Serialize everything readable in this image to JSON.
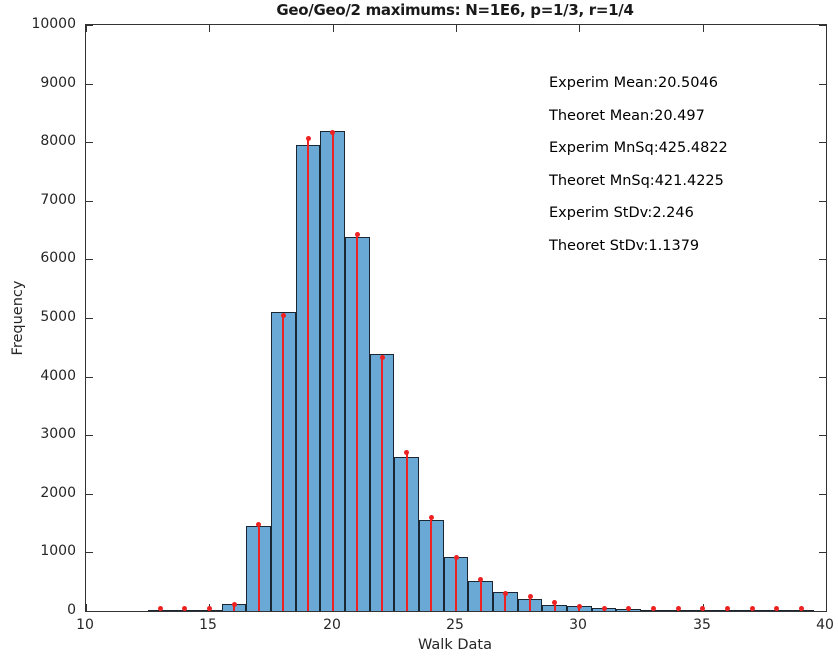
{
  "figure": {
    "title": "Geo/Geo/2 maximums: N=1E6, p=1/3, r=1/4",
    "xlabel": "Walk Data",
    "ylabel": "Frequency"
  },
  "colors": {
    "bar_fill": "#6aa8d6",
    "bar_edge": "#1a2632",
    "stem_red": "#ee2222",
    "axis": "#333333",
    "text": "#262626"
  },
  "chart_data": {
    "type": "bar",
    "subtype": "histogram-with-stem-overlay",
    "title": "Geo/Geo/2 maximums: N=1E6, p=1/3, r=1/4",
    "xlabel": "Walk Data",
    "ylabel": "Frequency",
    "xlim": [
      10,
      40
    ],
    "ylim": [
      0,
      10000
    ],
    "x_ticks": [
      10,
      15,
      20,
      25,
      30,
      35,
      40
    ],
    "y_ticks": [
      0,
      1000,
      2000,
      3000,
      4000,
      5000,
      6000,
      7000,
      8000,
      9000,
      10000
    ],
    "grid": false,
    "legend": "none",
    "bin_width": 1,
    "categories": [
      13,
      14,
      15,
      16,
      17,
      18,
      19,
      20,
      21,
      22,
      23,
      24,
      25,
      26,
      27,
      28,
      29,
      30,
      31,
      32,
      33,
      34,
      35,
      36,
      37,
      38,
      39
    ],
    "series": [
      {
        "name": "experimental-histogram",
        "type": "bar",
        "values": [
          3,
          4,
          15,
          125,
          1455,
          5100,
          7950,
          8190,
          6380,
          4390,
          2620,
          1560,
          930,
          515,
          330,
          210,
          105,
          85,
          45,
          28,
          14,
          6,
          3,
          2,
          1,
          1,
          1
        ]
      },
      {
        "name": "theoretical-stems",
        "type": "stem",
        "values": [
          2,
          3,
          12,
          118,
          1470,
          5040,
          8060,
          8165,
          6420,
          4330,
          2700,
          1590,
          915,
          530,
          300,
          250,
          140,
          75,
          25,
          12,
          6,
          4,
          2,
          2,
          1,
          1,
          1
        ]
      }
    ],
    "annotations": [
      "Experim Mean:20.5046",
      "Theoret Mean:20.497",
      "Experim MnSq:425.4822",
      "Theoret MnSq:421.4225",
      "Experim StDv:2.246",
      "Theoret StDv:1.1379"
    ]
  }
}
